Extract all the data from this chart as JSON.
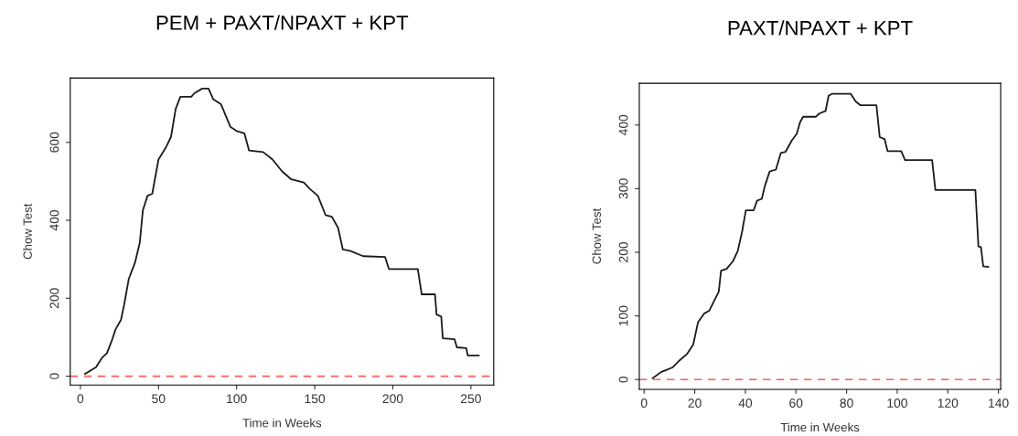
{
  "chart_data": [
    {
      "type": "line",
      "title": "PEM + PAXT/NPAXT + KPT",
      "xlabel": "Time in Weeks",
      "ylabel": "Chow Test",
      "xlim": [
        -6.5,
        264.6
      ],
      "ylim": [
        -22.6,
        765
      ],
      "xticks": [
        0,
        50,
        100,
        150,
        200,
        250
      ],
      "yticks": [
        0,
        200,
        400,
        600
      ],
      "grid": false,
      "legend": false,
      "ref_lines": [
        {
          "axis": "y",
          "value": 0,
          "color": "#ff5a5a",
          "line_style": "dashed"
        }
      ],
      "series": [
        {
          "color": "#1a1a1a",
          "x": [
            3,
            10,
            14,
            17,
            20,
            22.5,
            26,
            28,
            31,
            35,
            38,
            40,
            43,
            46,
            50,
            55,
            58,
            61,
            64,
            71,
            73,
            78,
            82,
            85,
            90,
            93,
            96,
            100,
            105,
            108,
            117,
            123,
            129,
            135,
            143,
            147,
            152,
            157,
            161,
            165,
            168,
            173,
            181,
            195,
            197.5,
            216,
            218.5,
            227,
            228,
            231,
            232,
            239.5,
            241,
            247,
            248,
            255
          ],
          "values": [
            6,
            23,
            48,
            59,
            90,
            120,
            145,
            183,
            250,
            292,
            342,
            426,
            463,
            468,
            556,
            589,
            614,
            686,
            717,
            717,
            726,
            738,
            738,
            711,
            698,
            669,
            640,
            629,
            623,
            579,
            575,
            556,
            526,
            505,
            497,
            480,
            463,
            413,
            409,
            380,
            325,
            321,
            308,
            306,
            275,
            275,
            210,
            210,
            158,
            153,
            97,
            95,
            74,
            72,
            53,
            53
          ]
        }
      ]
    },
    {
      "type": "line",
      "title": "PAXT/NPAXT + KPT",
      "xlabel": "Time in Weeks",
      "ylabel": "Chow Test",
      "xlim": [
        -1.9,
        140.9
      ],
      "ylim": [
        -15.4,
        465.6
      ],
      "xticks": [
        0,
        20,
        40,
        60,
        80,
        100,
        120,
        140
      ],
      "yticks": [
        0,
        100,
        200,
        300,
        400
      ],
      "grid": false,
      "legend": false,
      "ref_lines": [
        {
          "axis": "y",
          "value": 0,
          "color": "#ff5a5a",
          "line_style": "dashed"
        }
      ],
      "series": [
        {
          "color": "#1a1a1a",
          "x": [
            3.4,
            6.8,
            8.7,
            11.2,
            13.7,
            16.9,
            19.4,
            21.3,
            23.8,
            25.7,
            29.5,
            30.4,
            32.6,
            35.1,
            37,
            38.7,
            40.2,
            43.3,
            44.6,
            46.5,
            47.7,
            49.6,
            52.1,
            54,
            55.9,
            58.4,
            60.3,
            61.6,
            62.8,
            67.9,
            69.2,
            71.7,
            72.9,
            74.2,
            81.7,
            83.6,
            85.5,
            91.8,
            93.1,
            95,
            96.2,
            101.6,
            103.1,
            113.8,
            115.1,
            130.9,
            132.1,
            133.1,
            134,
            136
          ],
          "values": [
            2,
            12,
            15,
            19,
            29,
            40,
            55,
            90,
            104,
            108,
            138,
            171,
            174,
            186,
            202,
            232,
            266,
            266,
            281,
            284,
            304,
            327,
            330,
            356,
            358,
            376,
            386,
            404,
            413,
            413,
            418,
            422,
            446,
            449,
            449,
            437,
            431,
            431,
            381,
            378,
            359,
            359,
            345,
            345,
            298,
            298,
            209,
            208,
            178,
            177
          ]
        }
      ]
    }
  ]
}
